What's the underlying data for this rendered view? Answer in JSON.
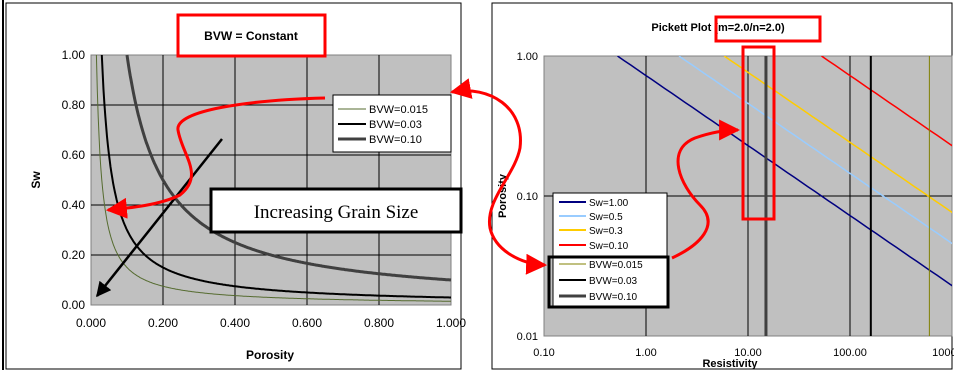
{
  "colors": {
    "plot_bg": "#c0c0c0",
    "highlight": "#ff0000",
    "frame": "#000000"
  },
  "chart_data": [
    {
      "type": "line",
      "title": "BVW = Constant",
      "xlabel": "Porosity",
      "ylabel": "Sw",
      "xlim": [
        0,
        1
      ],
      "ylim": [
        0,
        1
      ],
      "x_ticks": [
        "0.000",
        "0.200",
        "0.400",
        "0.600",
        "0.800",
        "1.000"
      ],
      "y_ticks": [
        "0.00",
        "0.20",
        "0.40",
        "0.60",
        "0.80",
        "1.00"
      ],
      "grid": true,
      "legend_position": "top-right",
      "series": [
        {
          "name": "BVW=0.015",
          "bvw": 0.015,
          "color": "#556b2f"
        },
        {
          "name": "BVW=0.03",
          "bvw": 0.03,
          "color": "#000000"
        },
        {
          "name": "BVW=0.10",
          "bvw": 0.1,
          "color": "#404040"
        }
      ],
      "annotation": "Increasing Grain Size"
    },
    {
      "type": "line",
      "title": "Pickett Plot (m=2.0/n=2.0)",
      "xlabel": "Resistivity",
      "ylabel": "Porosity",
      "xscale": "log",
      "yscale": "log",
      "xlim": [
        0.1,
        1000
      ],
      "ylim": [
        0.01,
        1
      ],
      "x_ticks": [
        "0.10",
        "1.00",
        "10.00",
        "100.00",
        "1000.00"
      ],
      "y_ticks": [
        "0.01",
        "0.10",
        "1.00"
      ],
      "grid": true,
      "legend_position": "lower-left",
      "series": [
        {
          "name": "Sw=1.00",
          "sw": 1.0,
          "color": "#000080"
        },
        {
          "name": "Sw=0.5",
          "sw": 0.5,
          "color": "#99ccff"
        },
        {
          "name": "Sw=0.3",
          "sw": 0.3,
          "color": "#ffcc00"
        },
        {
          "name": "Sw=0.10",
          "sw": 0.1,
          "color": "#ff0000"
        },
        {
          "name": "BVW=0.015",
          "resistivity": 600,
          "color": "#808000"
        },
        {
          "name": "BVW=0.03",
          "resistivity": 160,
          "color": "#000000"
        },
        {
          "name": "BVW=0.10",
          "resistivity": 15,
          "color": "#404040"
        }
      ]
    }
  ]
}
